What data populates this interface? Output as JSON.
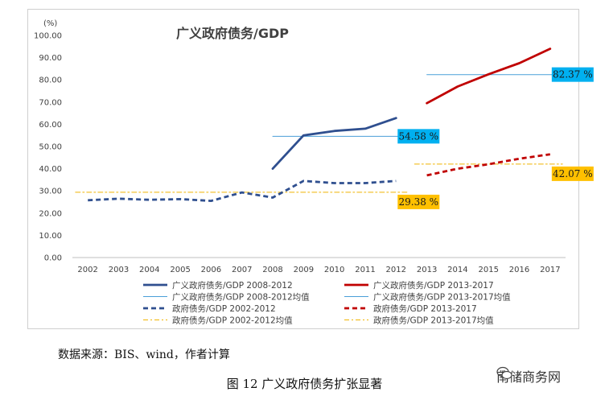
{
  "chart_data": {
    "type": "line",
    "title": "广义政府债务/GDP",
    "ylabel": "(%)",
    "xlabel": "",
    "ylim": [
      0,
      100
    ],
    "yticks": [
      "0.00",
      "10.00",
      "20.00",
      "30.00",
      "40.00",
      "50.00",
      "60.00",
      "70.00",
      "80.00",
      "90.00",
      "100.00"
    ],
    "categories": [
      "2002",
      "2003",
      "2004",
      "2005",
      "2006",
      "2007",
      "2008",
      "2009",
      "2010",
      "2011",
      "2012",
      "2013",
      "2014",
      "2015",
      "2016",
      "2017"
    ],
    "series": [
      {
        "name": "广义政府债务/GDP 2008-2012",
        "style": "solid",
        "color": "#2f4f8f",
        "x": [
          "2008",
          "2009",
          "2010",
          "2011",
          "2012"
        ],
        "values": [
          40.0,
          55.0,
          57.0,
          58.0,
          62.8
        ]
      },
      {
        "name": "广义政府债务/GDP 2013-2017",
        "style": "solid",
        "color": "#c00000",
        "x": [
          "2013",
          "2014",
          "2015",
          "2016",
          "2017"
        ],
        "values": [
          69.5,
          77.0,
          82.5,
          87.5,
          94.0
        ]
      },
      {
        "name": "广义政府债务/GDP 2008-2012均值",
        "style": "thin",
        "color": "#4a9fd8",
        "x": [
          "2008",
          "2012"
        ],
        "values": [
          54.58,
          54.58
        ]
      },
      {
        "name": "广义政府债务/GDP 2013-2017均值",
        "style": "thin",
        "color": "#4a9fd8",
        "x": [
          "2013",
          "2017"
        ],
        "values": [
          82.37,
          82.37
        ]
      },
      {
        "name": "政府债务/GDP 2002-2012",
        "style": "dashed",
        "color": "#2f4f8f",
        "x": [
          "2002",
          "2003",
          "2004",
          "2005",
          "2006",
          "2007",
          "2008",
          "2009",
          "2010",
          "2011",
          "2012"
        ],
        "values": [
          25.8,
          26.5,
          26.0,
          26.3,
          25.5,
          29.3,
          27.0,
          34.5,
          33.5,
          33.5,
          34.5
        ]
      },
      {
        "name": "政府债务/GDP 2013-2017",
        "style": "dashed",
        "color": "#c00000",
        "x": [
          "2013",
          "2014",
          "2015",
          "2016",
          "2017"
        ],
        "values": [
          37.0,
          40.0,
          42.0,
          44.5,
          46.5
        ]
      },
      {
        "name": "政府债务/GDP 2002-2012均值",
        "style": "dashdot",
        "color": "#f0b400",
        "x": [
          "2002",
          "2012"
        ],
        "values": [
          29.38,
          29.38
        ]
      },
      {
        "name": "政府债务/GDP 2013-2017均值",
        "style": "dashdot",
        "color": "#f0b400",
        "x": [
          "2013",
          "2017"
        ],
        "values": [
          42.07,
          42.07
        ]
      }
    ],
    "annotations": [
      {
        "text": "54.58 %",
        "x": "2012",
        "y": 54.58,
        "bg": "#00b0f0"
      },
      {
        "text": "82.37 %",
        "x": "2017",
        "y": 82.37,
        "bg": "#00b0f0"
      },
      {
        "text": "29.38 %",
        "x": "2012",
        "y": 29.38,
        "bg": "#ffc000"
      },
      {
        "text": "42.07 %",
        "x": "2017",
        "y": 42.07,
        "bg": "#ffc000"
      }
    ],
    "legend": [
      "广义政府债务/GDP 2008-2012",
      "广义政府债务/GDP 2013-2017",
      "广义政府债务/GDP 2008-2012均值",
      "广义政府债务/GDP 2013-2017均值",
      "政府债务/GDP 2002-2012",
      "政府债务/GDP 2013-2017",
      "政府债务/GDP 2002-2012均值",
      "政府债务/GDP 2013-2017均值"
    ],
    "legend_position": "bottom"
  },
  "source": "数据来源：BIS、wind，作者计算",
  "caption": "图 12  广义政府债务扩张显著",
  "watermark": "南储商务网"
}
